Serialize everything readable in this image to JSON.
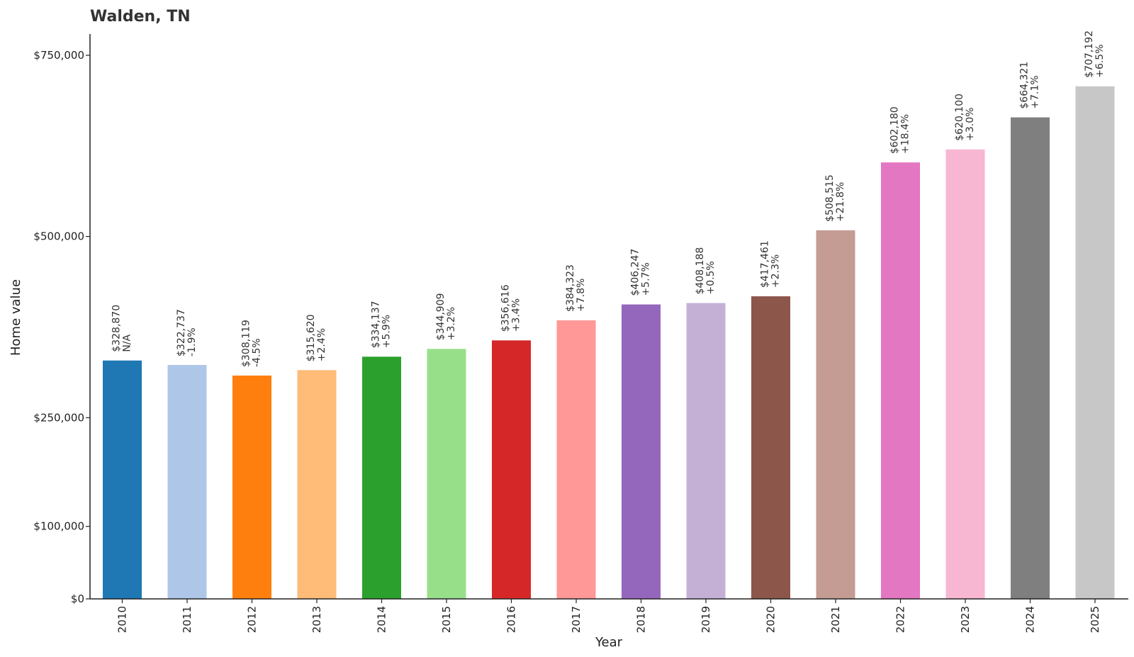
{
  "chart_data": {
    "type": "bar",
    "title": "Walden, TN",
    "xlabel": "Year",
    "ylabel": "Home value",
    "ylim": [
      0,
      780000
    ],
    "yticks": [
      {
        "value": 0,
        "label": "$0"
      },
      {
        "value": 100000,
        "label": "$100,000"
      },
      {
        "value": 250000,
        "label": "$250,000"
      },
      {
        "value": 500000,
        "label": "$500,000"
      },
      {
        "value": 750000,
        "label": "$750,000"
      }
    ],
    "grid": false,
    "legend": "none",
    "categories": [
      "2010",
      "2011",
      "2012",
      "2013",
      "2014",
      "2015",
      "2016",
      "2017",
      "2018",
      "2019",
      "2020",
      "2021",
      "2022",
      "2023",
      "2024",
      "2025"
    ],
    "values": [
      328870,
      322737,
      308119,
      315620,
      334137,
      344909,
      356616,
      384323,
      406247,
      408188,
      417461,
      508515,
      602180,
      620100,
      664321,
      707192
    ],
    "value_labels": [
      "$328,870",
      "$322,737",
      "$308,119",
      "$315,620",
      "$334,137",
      "$344,909",
      "$356,616",
      "$384,323",
      "$406,247",
      "$408,188",
      "$417,461",
      "$508,515",
      "$602,180",
      "$620,100",
      "$664,321",
      "$707,192"
    ],
    "change_labels": [
      "N/A",
      "-1.9%",
      "-4.5%",
      "+2.4%",
      "+5.9%",
      "+3.2%",
      "+3.4%",
      "+7.8%",
      "+5.7%",
      "+0.5%",
      "+2.3%",
      "+21.8%",
      "+18.4%",
      "+3.0%",
      "+7.1%",
      "+6.5%"
    ],
    "colors": [
      "#1f77b4",
      "#aec7e8",
      "#ff7f0e",
      "#ffbb78",
      "#2ca02c",
      "#98df8a",
      "#d62728",
      "#ff9896",
      "#9467bd",
      "#c5b0d5",
      "#8c564b",
      "#c49c94",
      "#e377c2",
      "#f7b6d2",
      "#7f7f7f",
      "#c7c7c7"
    ]
  }
}
